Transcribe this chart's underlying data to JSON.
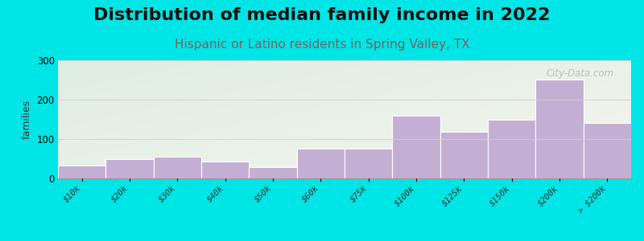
{
  "title": "Distribution of median family income in 2022",
  "subtitle": "Hispanic or Latino residents in Spring Valley, TX",
  "categories": [
    "$10k",
    "$20k",
    "$30k",
    "$40k",
    "$50k",
    "$60k",
    "$75k",
    "$100k",
    "$125k",
    "$150k",
    "$200k",
    "> $200k"
  ],
  "values": [
    32,
    50,
    55,
    43,
    28,
    75,
    75,
    160,
    118,
    148,
    250,
    140
  ],
  "bar_color": "#c4afd4",
  "background_color": "#00e5e5",
  "plot_bg_top_left": "#deeee0",
  "plot_bg_bottom_right": "#f5f5f0",
  "ylabel": "families",
  "ylim": [
    0,
    300
  ],
  "yticks": [
    0,
    100,
    200,
    300
  ],
  "grid_color": "#d0d0d0",
  "title_fontsize": 16,
  "subtitle_fontsize": 11,
  "subtitle_color": "#7a6060",
  "watermark_text": "City-Data.com",
  "watermark_color": "#aabbaa",
  "tick_label_fontsize": 7.5
}
